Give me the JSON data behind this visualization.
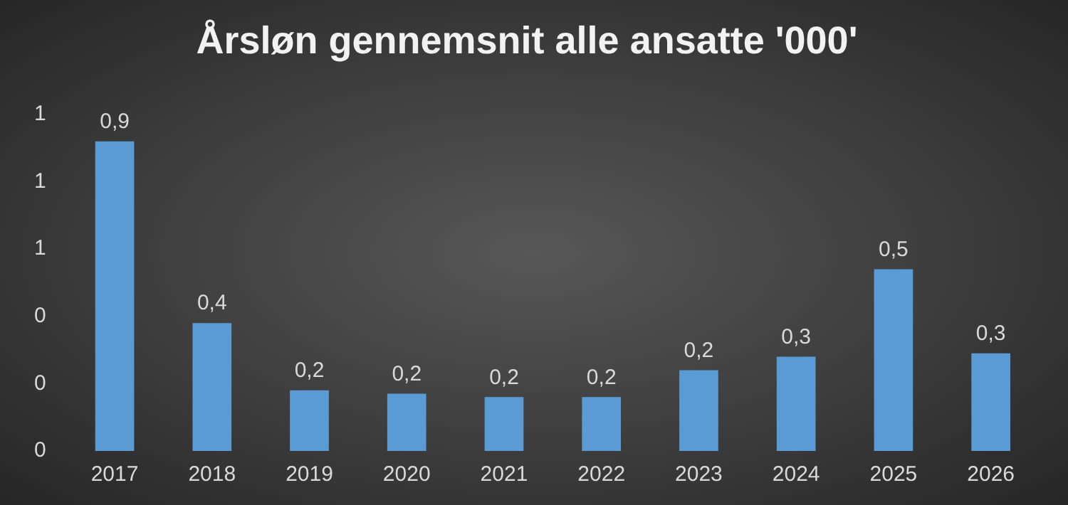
{
  "chart_data": {
    "type": "bar",
    "title": "Årsløn gennemsnit alle ansatte '000'",
    "categories": [
      "2017",
      "2018",
      "2019",
      "2020",
      "2021",
      "2022",
      "2023",
      "2024",
      "2025",
      "2026"
    ],
    "values": [
      0.92,
      0.38,
      0.18,
      0.17,
      0.16,
      0.16,
      0.24,
      0.28,
      0.54,
      0.29
    ],
    "value_labels": [
      "0,9",
      "0,4",
      "0,2",
      "0,2",
      "0,2",
      "0,2",
      "0,2",
      "0,3",
      "0,5",
      "0,3"
    ],
    "color": "#5b9bd5",
    "ylim": [
      0,
      1
    ],
    "yticks": [
      {
        "value": 0,
        "label": "0"
      },
      {
        "value": 0.2,
        "label": "0"
      },
      {
        "value": 0.4,
        "label": "0"
      },
      {
        "value": 0.6,
        "label": "1"
      },
      {
        "value": 0.8,
        "label": "1"
      },
      {
        "value": 1,
        "label": "1"
      }
    ],
    "grid": false,
    "legend": false
  }
}
